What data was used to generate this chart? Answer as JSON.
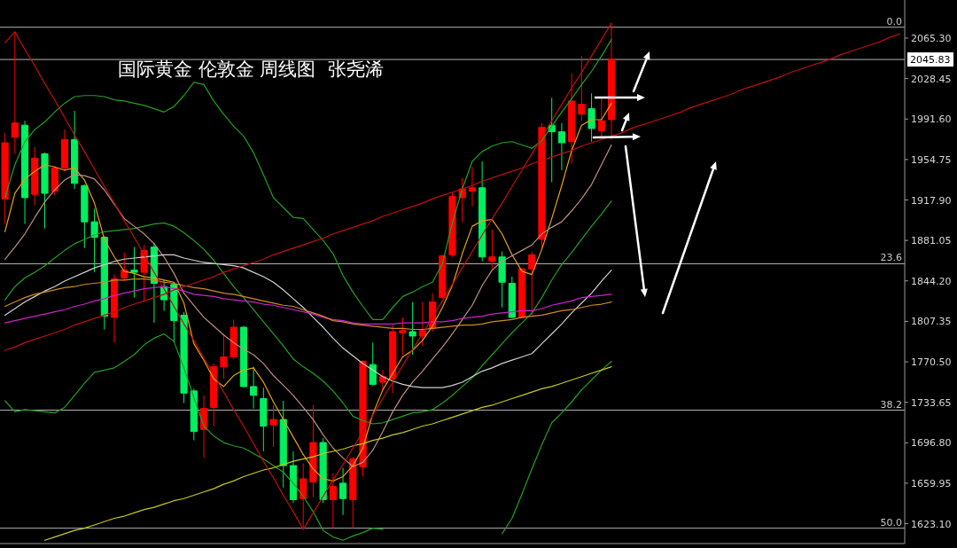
{
  "chart_data": {
    "type": "candlestick",
    "title": "国际黄金 伦敦金 周线图  张尧浠",
    "categories": [
      null,
      null,
      null,
      null,
      null,
      null,
      null,
      null,
      null,
      null,
      null,
      null,
      null,
      null,
      null,
      null,
      null,
      null,
      null,
      null,
      null,
      null,
      null,
      null,
      null,
      null,
      null,
      null,
      null,
      null,
      null,
      null,
      null,
      null,
      null,
      null,
      null,
      null,
      null,
      null,
      null,
      null,
      null,
      null,
      null,
      null,
      null,
      null,
      null,
      null,
      null,
      null,
      null,
      null,
      null,
      null,
      null,
      null,
      null,
      null,
      null,
      null,
      null,
      null,
      null,
      null,
      null,
      null,
      null,
      null,
      null,
      null,
      null,
      null,
      null,
      null,
      null,
      null,
      null,
      null,
      null,
      null,
      null,
      null,
      null,
      null,
      null,
      null,
      null,
      null,
      null
    ],
    "ohlc": [
      [
        1919,
        1979,
        1896,
        1970
      ],
      [
        1975,
        2071,
        1960,
        1988
      ],
      [
        1986,
        1990,
        1896,
        1920
      ],
      [
        1923,
        1966,
        1913,
        1956
      ],
      [
        1960,
        1961,
        1892,
        1924
      ],
      [
        1926,
        1949,
        1922,
        1947
      ],
      [
        1947,
        1982,
        1944,
        1973
      ],
      [
        1973,
        1999,
        1928,
        1933
      ],
      [
        1931,
        1932,
        1874,
        1898
      ],
      [
        1898,
        1910,
        1852,
        1884
      ],
      [
        1884,
        1885,
        1800,
        1812
      ],
      [
        1811,
        1850,
        1788,
        1846
      ],
      [
        1847,
        1870,
        1844,
        1854
      ],
      [
        1854,
        1875,
        1829,
        1852
      ],
      [
        1852,
        1877,
        1825,
        1872
      ],
      [
        1875,
        1879,
        1806,
        1842
      ],
      [
        1839,
        1845,
        1817,
        1827
      ],
      [
        1841,
        1842,
        1788,
        1808
      ],
      [
        1813,
        1816,
        1733,
        1742
      ],
      [
        1744,
        1746,
        1699,
        1707
      ],
      [
        1709,
        1740,
        1683,
        1728
      ],
      [
        1729,
        1769,
        1712,
        1766
      ],
      [
        1766,
        1796,
        1755,
        1775
      ],
      [
        1775,
        1809,
        1773,
        1802
      ],
      [
        1802,
        1803,
        1747,
        1748
      ],
      [
        1748,
        1766,
        1728,
        1740
      ],
      [
        1737,
        1747,
        1689,
        1712
      ],
      [
        1713,
        1731,
        1693,
        1718
      ],
      [
        1718,
        1735,
        1656,
        1676
      ],
      [
        1676,
        1689,
        1642,
        1645
      ],
      [
        1646,
        1678,
        1618,
        1664
      ],
      [
        1661,
        1731,
        1647,
        1697
      ],
      [
        1697,
        1701,
        1642,
        1645
      ],
      [
        1645,
        1669,
        1619,
        1657
      ],
      [
        1660,
        1674,
        1631,
        1646
      ],
      [
        1645,
        1684,
        1619,
        1682
      ],
      [
        1675,
        1772,
        1666,
        1771
      ],
      [
        1768,
        1788,
        1749,
        1750
      ],
      [
        1752,
        1763,
        1744,
        1757
      ],
      [
        1755,
        1804,
        1742,
        1798
      ],
      [
        1797,
        1811,
        1777,
        1799
      ],
      [
        1798,
        1825,
        1777,
        1794
      ],
      [
        1794,
        1825,
        1785,
        1799
      ],
      [
        1801,
        1833,
        1798,
        1825
      ],
      [
        1829,
        1868,
        1828,
        1867
      ],
      [
        1868,
        1925,
        1866,
        1921
      ],
      [
        1920,
        1938,
        1898,
        1928
      ],
      [
        1926,
        1948,
        1912,
        1929
      ],
      [
        1929,
        1953,
        1862,
        1866
      ],
      [
        1862,
        1891,
        1855,
        1866
      ],
      [
        1866,
        1871,
        1820,
        1843
      ],
      [
        1842,
        1848,
        1810,
        1811
      ],
      [
        1811,
        1856,
        1810,
        1855
      ],
      [
        1855,
        1871,
        1812,
        1868
      ],
      [
        1882,
        1988,
        1874,
        1984
      ],
      [
        1986,
        2011,
        1934,
        1980
      ],
      [
        1980,
        1988,
        1945,
        1970
      ],
      [
        1971,
        2033,
        1951,
        2008
      ],
      [
        1996,
        2049,
        1990,
        2005
      ],
      [
        2001,
        2015,
        1971,
        1983
      ],
      [
        1981,
        2010,
        1975,
        1990
      ],
      [
        1991,
        2079,
        1973,
        2046
      ],
      null,
      null,
      null,
      null,
      null,
      null,
      null,
      null,
      null,
      null,
      null,
      null,
      null,
      null,
      null,
      null,
      null,
      null,
      null,
      null,
      null,
      null,
      null,
      null,
      null,
      null,
      null,
      null,
      null
    ],
    "colors": [
      "#ff0000",
      "#ff0000",
      "#00f060",
      "#ff0000",
      "#00f060",
      "#ff0000",
      "#ff0000",
      "#00f060",
      "#00f060",
      "#00f060",
      "#00f060",
      "#ff0000",
      "#ff0000",
      "#00f060",
      "#ff0000",
      "#00f060",
      "#00f060",
      "#00f060",
      "#00f060",
      "#00f060",
      "#ff0000",
      "#ff0000",
      "#ff0000",
      "#ff0000",
      "#00f060",
      "#00f060",
      "#00f060",
      "#ff0000",
      "#00f060",
      "#00f060",
      "#ff0000",
      "#ff0000",
      "#00f060",
      "#ff0000",
      "#00f060",
      "#ff0000",
      "#ff0000",
      "#00f060",
      "#ff0000",
      "#ff0000",
      "#ff0000",
      "#00f060",
      "#ff0000",
      "#ff0000",
      "#ff0000",
      "#ff0000",
      "#ff0000",
      "#ff0000",
      "#00f060",
      "#ff0000",
      "#00f060",
      "#00f060",
      "#ff0000",
      "#ff0000",
      "#ff0000",
      "#00f060",
      "#00f060",
      "#ff0000",
      "#ff0000",
      "#00f060",
      "#ff0000",
      "#ff0000",
      null,
      null,
      null,
      null,
      null,
      null,
      null,
      null,
      null,
      null,
      null,
      null,
      null,
      null,
      null,
      null,
      null,
      null,
      null,
      null,
      null,
      null,
      null,
      null,
      null,
      null,
      null,
      null,
      null
    ],
    "series": [
      {
        "type": "line",
        "color": "#22a022",
        "values": [
          1920,
          1950,
          1971,
          1982,
          1989,
          1998,
          2006,
          2012,
          2013,
          2013,
          2012,
          2009,
          2008,
          2006,
          2004,
          2001,
          1998,
          2003,
          2013,
          2025,
          2023,
          2008,
          1996,
          1985,
          1976,
          1961,
          1941,
          1920,
          1911,
          1902,
          1901,
          1891,
          1881,
          1869,
          1849,
          1834,
          1821,
          1809,
          1809,
          1820,
          1830,
          1834,
          1839,
          1843,
          1860,
          1897,
          1928,
          1953,
          1962,
          1967,
          1970,
          1971,
          1968,
          1965,
          1972,
          1985,
          1998,
          2010,
          2023,
          2035,
          2049,
          2064,
          null,
          null,
          null,
          null,
          null,
          null,
          null,
          null,
          null,
          null,
          null,
          null,
          null,
          null,
          null,
          null,
          null,
          null,
          null,
          null,
          null,
          null,
          null,
          null,
          null,
          null,
          null,
          null,
          null
        ]
      },
      {
        "type": "line",
        "color": "#22a022",
        "values": [
          1827,
          1839,
          1847,
          1852,
          1858,
          1865,
          1872,
          1878,
          1882,
          1886,
          1889,
          1890,
          1891,
          1892,
          1894,
          1896,
          1897,
          1894,
          1888,
          1881,
          1873,
          1863,
          1851,
          1839,
          1829,
          1818,
          1807,
          1796,
          1785,
          1773,
          1766,
          1760,
          1753,
          1744,
          1733,
          1721,
          1717,
          1714,
          1715,
          1718,
          1721,
          1724,
          1725,
          1727,
          1733,
          1740,
          1748,
          1756,
          1767,
          1777,
          1787,
          1797,
          1806,
          1815,
          1829,
          1845,
          1859,
          1870,
          1882,
          1894,
          1905,
          1917,
          null,
          null,
          null,
          null,
          null,
          null,
          null,
          null,
          null,
          null,
          null,
          null,
          null,
          null,
          null,
          null,
          null,
          null,
          null,
          null,
          null,
          null,
          null,
          null,
          null,
          null,
          null,
          null,
          null
        ]
      },
      {
        "type": "line",
        "color": "#22a022",
        "values": [
          1735,
          1725,
          1727,
          1726,
          1725,
          1724,
          1729,
          1740,
          1751,
          1761,
          1763,
          1765,
          1771,
          1777,
          1786,
          1792,
          1796,
          1789,
          1765,
          1738,
          1712,
          1703,
          1697,
          1694,
          1692,
          1687,
          1682,
          1676,
          1670,
          1660,
          1648,
          1634,
          1617,
          1611,
          1608,
          1612,
          1615,
          1619,
          1618,
          null,
          null,
          null,
          null,
          null,
          null,
          null,
          null,
          null,
          null,
          null,
          1614,
          1628,
          1650,
          1673,
          1695,
          1715,
          1724,
          1734,
          1745,
          1754,
          1763,
          1771,
          null,
          null,
          null,
          null,
          null,
          null,
          null,
          null,
          null,
          null,
          null,
          null,
          null,
          null,
          null,
          null,
          null,
          null,
          null,
          null,
          null,
          null,
          null,
          null,
          null,
          null,
          null,
          null,
          null
        ]
      },
      {
        "type": "line",
        "color": "#e8a010",
        "values": [
          1889,
          1924,
          1937,
          1944,
          1950,
          1948,
          1945,
          1947,
          1936,
          1915,
          1882,
          1866,
          1853,
          1851,
          1848,
          1847,
          1845,
          1843,
          1824,
          1787,
          1772,
          1755,
          1748,
          1758,
          1763,
          1765,
          1752,
          1734,
          1718,
          1702,
          1686,
          1673,
          1664,
          1662,
          1666,
          1676,
          1692,
          1723,
          1745,
          1760,
          1775,
          1781,
          1790,
          1803,
          1820,
          1840,
          1869,
          1894,
          1899,
          1900,
          1887,
          1868,
          1853,
          1850,
          1873,
          1901,
          1931,
          1963,
          1986,
          1991,
          1991,
          2006,
          null,
          null,
          null,
          null,
          null,
          null,
          null,
          null,
          null,
          null,
          null,
          null,
          null,
          null,
          null,
          null,
          null,
          null,
          null,
          null,
          null,
          null,
          null,
          null,
          null,
          null,
          null,
          null,
          null
        ]
      },
      {
        "type": "line",
        "color": "#c09080",
        "values": [
          1864,
          1875,
          1887,
          1902,
          1916,
          1927,
          1936,
          1941,
          1940,
          1937,
          1927,
          1914,
          1901,
          1894,
          1887,
          1878,
          1866,
          1851,
          1833,
          1822,
          1811,
          1803,
          1795,
          1788,
          1782,
          1777,
          1769,
          1758,
          1749,
          1740,
          1729,
          1718,
          1704,
          1692,
          1683,
          1675,
          1679,
          1690,
          1707,
          1725,
          1740,
          1752,
          1762,
          1773,
          1784,
          1796,
          1809,
          1822,
          1840,
          1854,
          1862,
          1867,
          1872,
          1877,
          1887,
          1893,
          1898,
          1908,
          1919,
          1932,
          1950,
          1968,
          null,
          null,
          null,
          null,
          null,
          null,
          null,
          null,
          null,
          null,
          null,
          null,
          null,
          null,
          null,
          null,
          null,
          null,
          null,
          null,
          null,
          null,
          null,
          null,
          null,
          null,
          null,
          null,
          null
        ]
      },
      {
        "type": "line",
        "color": "#d0d0d0",
        "values": [
          1813,
          1819,
          1825,
          1830,
          1835,
          1839,
          1844,
          1848,
          1852,
          1856,
          1859,
          1862,
          1864,
          1865,
          1866,
          1867,
          1868,
          1868,
          1865,
          1863,
          1861,
          1860,
          1859,
          1858,
          1856,
          1852,
          1848,
          1843,
          1836,
          1828,
          1820,
          1811,
          1802,
          1792,
          1783,
          1776,
          1769,
          1763,
          1757,
          1753,
          1750,
          1748,
          1747,
          1747,
          1747,
          1749,
          1752,
          1757,
          1762,
          1765,
          1769,
          1772,
          1775,
          1778,
          1787,
          1796,
          1805,
          1815,
          1824,
          1833,
          1844,
          1854,
          null,
          null,
          null,
          null,
          null,
          null,
          null,
          null,
          null,
          null,
          null,
          null,
          null,
          null,
          null,
          null,
          null,
          null,
          null,
          null,
          null,
          null,
          null,
          null,
          null,
          null,
          null,
          null,
          null
        ]
      },
      {
        "type": "line",
        "color": "#cc22cc",
        "values": [
          1806,
          1808,
          1810,
          1812,
          1814,
          1816,
          1818,
          1821,
          1823,
          1826,
          1828,
          1831,
          1833,
          1835,
          1837,
          1838,
          1839,
          1837,
          1835,
          1832,
          1831,
          1830,
          1828,
          1827,
          1826,
          1825,
          1823,
          1822,
          1820,
          1818,
          1816,
          1814,
          1811,
          1809,
          1808,
          1806,
          1805,
          1805,
          1805,
          1805,
          1806,
          1806,
          1806,
          1807,
          1807,
          1808,
          1810,
          1811,
          1812,
          1814,
          1815,
          1816,
          1817,
          1817,
          1819,
          1822,
          1824,
          1826,
          1829,
          1830,
          1831,
          1832,
          null,
          null,
          null,
          null,
          null,
          null,
          null,
          null,
          null,
          null,
          null,
          null,
          null,
          null,
          null,
          null,
          null,
          null,
          null,
          null,
          null,
          null,
          null,
          null,
          null,
          null,
          null,
          null,
          null
        ]
      },
      {
        "type": "line",
        "color": "#d08a20",
        "values": [
          1821,
          1825,
          1829,
          1832,
          1834,
          1836,
          1838,
          1839,
          1841,
          1842,
          1843,
          1845,
          1845,
          1846,
          1846,
          1845,
          1843,
          1842,
          1840,
          1838,
          1837,
          1835,
          1833,
          1832,
          1830,
          1828,
          1826,
          1824,
          1822,
          1821,
          1818,
          1815,
          1812,
          1808,
          1807,
          1805,
          1804,
          1803,
          1802,
          1801,
          1801,
          1800,
          1800,
          1801,
          1802,
          1803,
          1804,
          1804,
          1805,
          1807,
          1808,
          1809,
          1811,
          1812,
          1813,
          1815,
          1817,
          1818,
          1820,
          1822,
          1823,
          1825,
          null,
          null,
          null,
          null,
          null,
          null,
          null,
          null,
          null,
          null,
          null,
          null,
          null,
          null,
          null,
          null,
          null,
          null,
          null,
          null,
          null,
          null,
          null,
          null,
          null,
          null,
          null,
          null,
          null
        ]
      },
      {
        "type": "line",
        "color": "#c8c81e",
        "values": [
          null,
          null,
          null,
          null,
          1608,
          1611,
          1614,
          1617,
          1619,
          1622,
          1625,
          1628,
          1630,
          1633,
          1636,
          1638,
          1641,
          1644,
          1646,
          1649,
          1652,
          1655,
          1659,
          1662,
          1666,
          1669,
          1672,
          1674,
          1677,
          1680,
          1682,
          1684,
          1687,
          1689,
          1691,
          1694,
          1696,
          1699,
          1701,
          1704,
          1706,
          1709,
          1712,
          1714,
          1717,
          1720,
          1723,
          1726,
          1729,
          1731,
          1734,
          1737,
          1740,
          1743,
          1746,
          1748,
          1751,
          1754,
          1757,
          1760,
          1763,
          1766,
          null,
          null,
          null,
          null,
          null,
          null,
          null,
          null,
          null,
          null,
          null,
          null,
          null,
          null,
          null,
          null,
          null,
          null,
          null,
          null,
          null,
          null,
          null,
          null,
          null,
          null,
          null,
          null,
          null
        ]
      },
      {
        "type": "line",
        "color": "#c01010",
        "values": [
          1781,
          1784,
          1788,
          1791,
          1794,
          1797,
          1800,
          1804,
          1807,
          1810,
          1813,
          1816,
          1820,
          1823,
          1826,
          1829,
          1832,
          1836,
          1839,
          1842,
          1845,
          1848,
          1852,
          1855,
          1858,
          1861,
          1864,
          1868,
          1871,
          1874,
          1877,
          1880,
          1883,
          1887,
          1890,
          1893,
          1896,
          1899,
          1903,
          1906,
          1909,
          1912,
          1915,
          1919,
          1922,
          1925,
          1928,
          1931,
          1935,
          1938,
          1941,
          1944,
          1947,
          1951,
          1954,
          1957,
          1960,
          1963,
          1967,
          1970,
          1973,
          1976,
          1979,
          1983,
          1986,
          1989,
          1992,
          1995,
          1998,
          2002,
          2005,
          2008,
          2011,
          2014,
          2018,
          2021,
          2024,
          2027,
          2030,
          2034,
          2037,
          2040,
          2043,
          2046,
          2050,
          2053,
          2056,
          2059,
          2062,
          2066,
          2069
        ]
      },
      {
        "type": "line",
        "color": "#c01010",
        "values": [
          2061,
          2071,
          2055,
          2040,
          2024,
          2009,
          1993,
          1977,
          1962,
          1946,
          1930,
          1915,
          1899,
          1884,
          1868,
          1852,
          1837,
          1821,
          1805,
          1790,
          1774,
          1759,
          1743,
          1727,
          1712,
          1696,
          1680,
          1665,
          1649,
          1634,
          1618,
          1633,
          1648,
          1663,
          1677,
          1692,
          1707,
          1722,
          1737,
          1752,
          1767,
          1782,
          1796,
          1811,
          1826,
          1841,
          1856,
          1871,
          1886,
          1901,
          1915,
          1930,
          1945,
          1960,
          1975,
          1990,
          2005,
          2020,
          2034,
          2049,
          2064,
          2079,
          null,
          null,
          null,
          null,
          null,
          null,
          null,
          null,
          null,
          null,
          null,
          null,
          null,
          null,
          null,
          null,
          null,
          null,
          null,
          null,
          null,
          null,
          null,
          null,
          null,
          null,
          null,
          null,
          null
        ]
      }
    ],
    "ylim": [
      1605,
      2100
    ],
    "yticks": [
      {
        "value": 2065.3,
        "label": "2065.30"
      },
      {
        "value": 2028.45,
        "label": "2028.45"
      },
      {
        "value": 1991.6,
        "label": "1991.60"
      },
      {
        "value": 1954.75,
        "label": "1954.75"
      },
      {
        "value": 1917.9,
        "label": "1917.90"
      },
      {
        "value": 1881.05,
        "label": "1881.05"
      },
      {
        "value": 1844.2,
        "label": "1844.20"
      },
      {
        "value": 1807.35,
        "label": "1807.35"
      },
      {
        "value": 1770.5,
        "label": "1770.50"
      },
      {
        "value": 1733.65,
        "label": "1733.65"
      },
      {
        "value": 1696.8,
        "label": "1696.80"
      },
      {
        "value": 1659.95,
        "label": "1659.95"
      },
      {
        "value": 1623.1,
        "label": "1623.10"
      }
    ],
    "tick_labels": "y",
    "ref_lines": [
      {
        "axis": "y",
        "value": 2075.2,
        "color": "#b4b4b4"
      },
      {
        "axis": "y",
        "value": 2045.83,
        "label": "2045.83",
        "color": "#b4b4b4"
      },
      {
        "axis": "y",
        "value": 1859.8,
        "color": "#b4b4b4"
      },
      {
        "axis": "y",
        "value": 1726.5,
        "color": "#b4b4b4"
      },
      {
        "axis": "y",
        "value": 1619,
        "color": "#b4b4b4"
      }
    ],
    "annotations": [
      {
        "text": "0.0",
        "y": 2075.2
      },
      {
        "text": "23.6",
        "y": 1859.8
      },
      {
        "text": "38.2",
        "y": 1726.5
      },
      {
        "text": "50.0",
        "y": 1619
      }
    ]
  }
}
